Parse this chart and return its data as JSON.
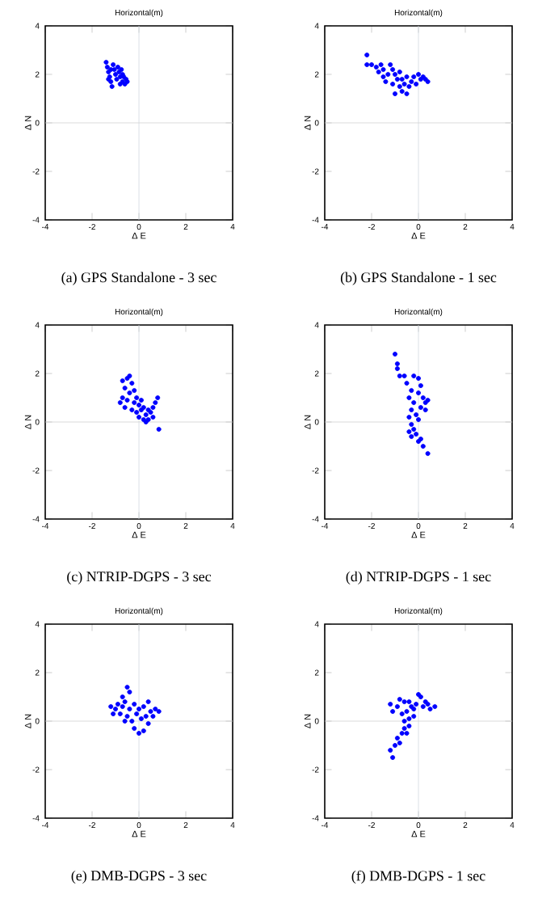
{
  "chart_data": [
    {
      "type": "scatter",
      "title": "Horizontal(m)",
      "xlabel": "Δ E",
      "ylabel": "Δ N",
      "annotations": [
        "(a) GPS Standalone - 3 sec"
      ],
      "xlim": [
        -4,
        4
      ],
      "ylim": [
        -4,
        4
      ],
      "xticks": [
        -4,
        -2,
        0,
        2,
        4
      ],
      "yticks": [
        -4,
        -2,
        0,
        2,
        4
      ],
      "ref_lines": [
        {
          "axis": "x",
          "value": 0,
          "color": "#d0d8e0"
        },
        {
          "axis": "y",
          "value": 0,
          "color": "#d0d0d0"
        }
      ],
      "series": [
        {
          "color": "#0000ff",
          "x": [
            -1.4,
            -1.35,
            -1.3,
            -1.25,
            -1.2,
            -1.15,
            -1.1,
            -1.05,
            -1.0,
            -0.95,
            -0.9,
            -0.85,
            -0.8,
            -0.8,
            -0.75,
            -0.7,
            -0.7,
            -0.65,
            -0.6,
            -0.55,
            -0.5,
            -1.2,
            -1.3
          ],
          "values": [
            2.5,
            2.3,
            2.1,
            1.9,
            1.7,
            1.5,
            2.4,
            2.2,
            2.0,
            1.8,
            2.3,
            2.1,
            1.9,
            1.6,
            2.2,
            2.0,
            1.7,
            1.9,
            1.6,
            1.8,
            1.7,
            2.2,
            1.8
          ]
        }
      ]
    },
    {
      "type": "scatter",
      "title": "Horizontal(m)",
      "xlabel": "Δ E",
      "ylabel": "Δ N",
      "annotations": [
        "(b) GPS Standalone - 1 sec"
      ],
      "xlim": [
        -4,
        4
      ],
      "ylim": [
        -4,
        4
      ],
      "xticks": [
        -4,
        -2,
        0,
        2,
        4
      ],
      "yticks": [
        -4,
        -2,
        0,
        2,
        4
      ],
      "ref_lines": [
        {
          "axis": "x",
          "value": 0,
          "color": "#d0d8e0"
        },
        {
          "axis": "y",
          "value": 0,
          "color": "#d0d0d0"
        }
      ],
      "series": [
        {
          "color": "#0000ff",
          "x": [
            -2.2,
            -2.2,
            -2.0,
            -1.8,
            -1.7,
            -1.6,
            -1.5,
            -1.5,
            -1.4,
            -1.3,
            -1.2,
            -1.1,
            -1.1,
            -1.0,
            -1.0,
            -0.9,
            -0.8,
            -0.8,
            -0.7,
            -0.7,
            -0.6,
            -0.5,
            -0.5,
            -0.4,
            -0.3,
            -0.2,
            -0.1,
            0.0,
            0.1,
            0.2,
            0.3,
            0.4
          ],
          "values": [
            2.8,
            2.4,
            2.4,
            2.3,
            2.1,
            2.4,
            1.9,
            2.2,
            1.7,
            2.0,
            2.4,
            1.6,
            2.2,
            1.2,
            2.0,
            1.8,
            1.5,
            2.1,
            1.3,
            1.8,
            1.6,
            1.2,
            1.9,
            1.5,
            1.7,
            1.9,
            1.6,
            2.0,
            1.8,
            1.9,
            1.8,
            1.7
          ]
        }
      ]
    },
    {
      "type": "scatter",
      "title": "Horizontal(m)",
      "xlabel": "Δ E",
      "ylabel": "Δ N",
      "annotations": [
        "(c) NTRIP-DGPS - 3 sec"
      ],
      "xlim": [
        -4,
        4
      ],
      "ylim": [
        -4,
        4
      ],
      "xticks": [
        -4,
        -2,
        0,
        2,
        4
      ],
      "yticks": [
        -4,
        -2,
        0,
        2,
        4
      ],
      "ref_lines": [
        {
          "axis": "x",
          "value": 0,
          "color": "#d0d8e0"
        },
        {
          "axis": "y",
          "value": 0,
          "color": "#d0d0d0"
        }
      ],
      "series": [
        {
          "color": "#0000ff",
          "x": [
            -0.7,
            -0.6,
            -0.5,
            -0.4,
            -0.3,
            -0.8,
            -0.7,
            -0.6,
            -0.5,
            -0.4,
            -0.3,
            -0.2,
            -0.2,
            -0.1,
            -0.1,
            0.0,
            0.0,
            0.1,
            0.1,
            0.2,
            0.2,
            0.3,
            0.4,
            0.4,
            0.5,
            0.6,
            0.6,
            0.7,
            0.8,
            0.85,
            0.3
          ],
          "values": [
            1.7,
            1.4,
            1.8,
            1.9,
            1.6,
            0.8,
            1.0,
            0.6,
            0.9,
            1.2,
            0.5,
            1.3,
            0.8,
            1.0,
            0.4,
            0.7,
            0.2,
            0.5,
            0.9,
            0.1,
            0.6,
            0.3,
            0.5,
            0.1,
            0.4,
            0.2,
            0.6,
            0.8,
            1.0,
            -0.3,
            0.0
          ]
        }
      ]
    },
    {
      "type": "scatter",
      "title": "Horizontal(m)",
      "xlabel": "Δ E",
      "ylabel": "Δ N",
      "annotations": [
        "(d) NTRIP-DGPS - 1 sec"
      ],
      "xlim": [
        -4,
        4
      ],
      "ylim": [
        -4,
        4
      ],
      "xticks": [
        -4,
        -2,
        0,
        2,
        4
      ],
      "yticks": [
        -4,
        -2,
        0,
        2,
        4
      ],
      "ref_lines": [
        {
          "axis": "x",
          "value": 0,
          "color": "#d0d8e0"
        },
        {
          "axis": "y",
          "value": 0,
          "color": "#d0d0d0"
        }
      ],
      "series": [
        {
          "color": "#0000ff",
          "x": [
            -1.0,
            -0.9,
            -0.9,
            -0.8,
            -0.6,
            -0.5,
            -0.3,
            -0.2,
            0.0,
            -0.4,
            -0.2,
            0.0,
            0.1,
            0.2,
            0.3,
            0.4,
            0.3,
            0.1,
            -0.1,
            -0.3,
            -0.4,
            -0.3,
            -0.2,
            -0.4,
            -0.3,
            -0.1,
            0.0,
            0.1,
            0.2,
            0.4,
            0.0
          ],
          "values": [
            2.8,
            2.4,
            2.2,
            1.9,
            1.9,
            1.6,
            1.3,
            1.9,
            1.8,
            1.0,
            0.8,
            1.2,
            1.5,
            1.0,
            0.8,
            0.9,
            0.5,
            0.6,
            0.3,
            0.5,
            0.2,
            -0.1,
            -0.3,
            -0.4,
            -0.6,
            -0.5,
            -0.8,
            -0.7,
            -1.0,
            -1.3,
            0.1
          ]
        }
      ]
    },
    {
      "type": "scatter",
      "title": "Horizontal(m)",
      "xlabel": "Δ E",
      "ylabel": "Δ N",
      "annotations": [
        "(e) DMB-DGPS - 3 sec"
      ],
      "xlim": [
        -4,
        4
      ],
      "ylim": [
        -4,
        4
      ],
      "xticks": [
        -4,
        -2,
        0,
        2,
        4
      ],
      "yticks": [
        -4,
        -2,
        0,
        2,
        4
      ],
      "ref_lines": [
        {
          "axis": "x",
          "value": 0,
          "color": "#d0d8e0"
        },
        {
          "axis": "y",
          "value": 0,
          "color": "#d0d0d0"
        }
      ],
      "series": [
        {
          "color": "#0000ff",
          "x": [
            -0.5,
            -0.4,
            -0.7,
            -1.2,
            -1.1,
            -1.0,
            -0.9,
            -0.8,
            -0.7,
            -0.6,
            -0.5,
            -0.4,
            -0.3,
            -0.2,
            -0.2,
            -0.1,
            0.0,
            0.0,
            0.1,
            0.2,
            0.2,
            0.3,
            0.4,
            0.5,
            0.6,
            0.7,
            0.85,
            0.4,
            -0.6
          ],
          "values": [
            1.4,
            1.2,
            1.0,
            0.6,
            0.3,
            0.5,
            0.7,
            0.3,
            0.6,
            0.8,
            0.2,
            0.5,
            0.0,
            0.7,
            -0.3,
            0.3,
            -0.5,
            0.5,
            0.1,
            -0.4,
            0.6,
            0.2,
            0.8,
            0.4,
            0.2,
            0.5,
            0.4,
            -0.1,
            0.0
          ]
        }
      ]
    },
    {
      "type": "scatter",
      "title": "Horizontal(m)",
      "xlabel": "Δ E",
      "ylabel": "Δ N",
      "annotations": [
        "(f) DMB-DGPS - 1 sec"
      ],
      "xlim": [
        -4,
        4
      ],
      "ylim": [
        -4,
        4
      ],
      "xticks": [
        -4,
        -2,
        0,
        2,
        4
      ],
      "yticks": [
        -4,
        -2,
        0,
        2,
        4
      ],
      "ref_lines": [
        {
          "axis": "x",
          "value": 0,
          "color": "#d0d8e0"
        },
        {
          "axis": "y",
          "value": 0,
          "color": "#d0d0d0"
        }
      ],
      "series": [
        {
          "color": "#0000ff",
          "x": [
            -1.1,
            -1.2,
            -1.0,
            -0.9,
            -0.8,
            -0.7,
            -0.6,
            -0.5,
            -0.6,
            -0.7,
            -0.5,
            -0.4,
            -0.3,
            -0.6,
            -1.2,
            -1.1,
            -0.9,
            -0.8,
            -0.4,
            -0.2,
            -0.1,
            0.0,
            0.1,
            0.2,
            0.3,
            0.4,
            0.5,
            0.7,
            -0.2,
            -0.4
          ],
          "values": [
            -1.5,
            -1.2,
            -1.0,
            -0.7,
            -0.9,
            -0.5,
            -0.3,
            -0.5,
            0.0,
            0.3,
            0.4,
            0.1,
            0.6,
            0.8,
            0.7,
            0.4,
            0.6,
            0.9,
            0.8,
            0.5,
            0.7,
            1.1,
            1.0,
            0.6,
            0.8,
            0.7,
            0.5,
            0.6,
            0.2,
            -0.2
          ]
        }
      ]
    }
  ]
}
